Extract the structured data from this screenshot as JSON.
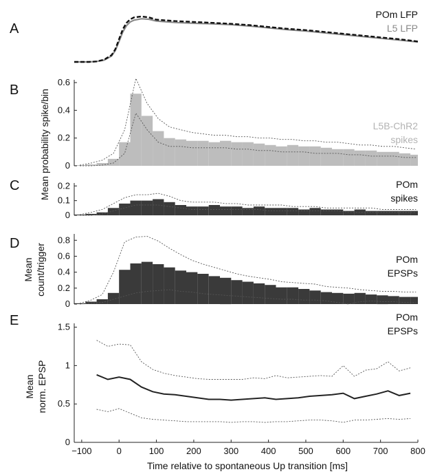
{
  "chart_data": [
    {
      "id": "A",
      "type": "line",
      "panel_label": "A",
      "legend": [
        "POm LFP",
        "L5 LFP"
      ],
      "colors": {
        "pom": "#111111",
        "l5": "#8a8a8a"
      },
      "xlim": [
        -120,
        800
      ],
      "series": [
        {
          "name": "POm LFP",
          "style": "dashed",
          "x": [
            -120,
            -80,
            -60,
            -40,
            -20,
            -10,
            0,
            10,
            20,
            30,
            40,
            60,
            80,
            100,
            150,
            200,
            250,
            300,
            350,
            400,
            450,
            500,
            550,
            600,
            650,
            700,
            750,
            800
          ],
          "y": [
            0.0,
            0.0,
            0.01,
            0.05,
            0.15,
            0.28,
            0.5,
            0.72,
            0.86,
            0.94,
            0.98,
            1.0,
            0.98,
            0.93,
            0.9,
            0.88,
            0.86,
            0.84,
            0.81,
            0.77,
            0.73,
            0.7,
            0.66,
            0.62,
            0.58,
            0.54,
            0.5,
            0.45
          ]
        },
        {
          "name": "L5 LFP",
          "style": "solid",
          "x": [
            -120,
            -80,
            -60,
            -40,
            -20,
            -10,
            0,
            10,
            20,
            30,
            40,
            60,
            80,
            100,
            150,
            200,
            250,
            300,
            350,
            400,
            450,
            500,
            550,
            600,
            650,
            700,
            750,
            800
          ],
          "y": [
            0.0,
            0.0,
            0.01,
            0.04,
            0.13,
            0.25,
            0.45,
            0.66,
            0.8,
            0.88,
            0.92,
            0.95,
            0.94,
            0.9,
            0.87,
            0.85,
            0.84,
            0.82,
            0.79,
            0.75,
            0.71,
            0.68,
            0.64,
            0.6,
            0.56,
            0.52,
            0.48,
            0.44
          ]
        }
      ]
    },
    {
      "id": "B",
      "type": "bar",
      "panel_label": "B",
      "legend": [
        "L5B-ChR2",
        "spikes"
      ],
      "legend_color": "#b3b3b3",
      "bar_color": "#bdbdbd",
      "ylim": [
        0,
        0.62
      ],
      "yticks": [
        "0",
        "0.2",
        "0.4",
        "0.6"
      ],
      "ytick_values": [
        0,
        0.2,
        0.4,
        0.6
      ],
      "bin_start": -120,
      "bin_width": 30,
      "values": [
        0.005,
        0.01,
        0.02,
        0.05,
        0.17,
        0.52,
        0.36,
        0.25,
        0.2,
        0.19,
        0.18,
        0.18,
        0.17,
        0.18,
        0.17,
        0.17,
        0.16,
        0.15,
        0.14,
        0.15,
        0.14,
        0.14,
        0.13,
        0.12,
        0.12,
        0.11,
        0.11,
        0.1,
        0.1,
        0.09,
        0.08
      ],
      "upper": [
        0.005,
        0.02,
        0.04,
        0.09,
        0.26,
        0.63,
        0.45,
        0.34,
        0.28,
        0.26,
        0.24,
        0.23,
        0.22,
        0.22,
        0.21,
        0.21,
        0.2,
        0.2,
        0.19,
        0.19,
        0.18,
        0.18,
        0.17,
        0.17,
        0.16,
        0.15,
        0.15,
        0.14,
        0.14,
        0.13,
        0.12
      ],
      "lower": [
        0.0,
        0.0,
        0.005,
        0.02,
        0.09,
        0.38,
        0.26,
        0.17,
        0.14,
        0.14,
        0.13,
        0.13,
        0.13,
        0.13,
        0.12,
        0.12,
        0.11,
        0.11,
        0.1,
        0.1,
        0.1,
        0.09,
        0.09,
        0.09,
        0.08,
        0.08,
        0.07,
        0.07,
        0.07,
        0.06,
        0.06
      ]
    },
    {
      "id": "C",
      "type": "bar",
      "panel_label": "C",
      "legend": [
        "POm",
        "spikes"
      ],
      "legend_color": "#111111",
      "bar_color": "#3a3a3a",
      "ylim": [
        0,
        0.22
      ],
      "yticks": [
        "0",
        "0.1",
        "0.2"
      ],
      "ytick_values": [
        0,
        0.1,
        0.2
      ],
      "bin_start": -120,
      "bin_width": 30,
      "values": [
        0.005,
        0.01,
        0.02,
        0.05,
        0.08,
        0.1,
        0.1,
        0.11,
        0.09,
        0.07,
        0.06,
        0.06,
        0.07,
        0.06,
        0.06,
        0.05,
        0.06,
        0.05,
        0.05,
        0.05,
        0.04,
        0.05,
        0.04,
        0.04,
        0.03,
        0.04,
        0.03,
        0.03,
        0.03,
        0.03,
        0.03
      ],
      "upper": [
        0.005,
        0.02,
        0.04,
        0.08,
        0.12,
        0.14,
        0.14,
        0.15,
        0.13,
        0.1,
        0.09,
        0.09,
        0.09,
        0.08,
        0.08,
        0.07,
        0.07,
        0.07,
        0.07,
        0.06,
        0.06,
        0.06,
        0.05,
        0.05,
        0.05,
        0.05,
        0.05,
        0.04,
        0.04,
        0.04,
        0.04
      ],
      "lower": [
        0.0,
        0.0,
        0.01,
        0.03,
        0.05,
        0.07,
        0.07,
        0.07,
        0.06,
        0.05,
        0.04,
        0.04,
        0.04,
        0.04,
        0.04,
        0.04,
        0.04,
        0.03,
        0.03,
        0.03,
        0.03,
        0.03,
        0.03,
        0.03,
        0.02,
        0.02,
        0.02,
        0.02,
        0.02,
        0.02,
        0.02
      ]
    },
    {
      "id": "D",
      "type": "bar",
      "panel_label": "D",
      "ylabel": [
        "Mean",
        "count/trigger"
      ],
      "legend": [
        "POm",
        "EPSPs"
      ],
      "legend_color": "#111111",
      "bar_color": "#3a3a3a",
      "ylim": [
        0,
        0.88
      ],
      "yticks": [
        "0",
        "0.2",
        "0.4",
        "0.6",
        "0.8"
      ],
      "ytick_values": [
        0,
        0.2,
        0.4,
        0.6,
        0.8
      ],
      "bin_start": -120,
      "bin_width": 30,
      "values": [
        0.01,
        0.03,
        0.06,
        0.14,
        0.43,
        0.51,
        0.53,
        0.5,
        0.46,
        0.42,
        0.4,
        0.38,
        0.35,
        0.33,
        0.3,
        0.28,
        0.26,
        0.24,
        0.21,
        0.21,
        0.19,
        0.17,
        0.15,
        0.14,
        0.13,
        0.14,
        0.12,
        0.11,
        0.1,
        0.09,
        0.09
      ],
      "upper": [
        0.01,
        0.05,
        0.12,
        0.4,
        0.78,
        0.84,
        0.85,
        0.79,
        0.7,
        0.62,
        0.55,
        0.5,
        0.46,
        0.42,
        0.38,
        0.35,
        0.33,
        0.31,
        0.28,
        0.27,
        0.26,
        0.25,
        0.22,
        0.21,
        0.2,
        0.18,
        0.17,
        0.16,
        0.16,
        0.15,
        0.15
      ],
      "lower": [
        0.0,
        0.01,
        0.02,
        0.06,
        0.1,
        0.14,
        0.16,
        0.17,
        0.18,
        0.16,
        0.15,
        0.13,
        0.12,
        0.11,
        0.1,
        0.09,
        0.08,
        0.07,
        0.06,
        0.06,
        0.05,
        0.05,
        0.04,
        0.02,
        0.0,
        0.03,
        0.04,
        0.03,
        0.03,
        0.02,
        0.02
      ]
    },
    {
      "id": "E",
      "type": "line",
      "panel_label": "E",
      "ylabel": [
        "Mean",
        "norm. EPSP"
      ],
      "legend": [
        "POm",
        "EPSPs"
      ],
      "legend_color": "#111111",
      "ylim": [
        0,
        1.55
      ],
      "yticks": [
        "0",
        "0.5",
        "1",
        "1.5"
      ],
      "ytick_values": [
        0,
        0.5,
        1,
        1.5
      ],
      "x": [
        -60,
        -30,
        0,
        30,
        60,
        90,
        120,
        150,
        180,
        210,
        240,
        270,
        300,
        330,
        360,
        390,
        420,
        450,
        480,
        510,
        540,
        570,
        600,
        630,
        660,
        690,
        720,
        750,
        780
      ],
      "mean": [
        0.88,
        0.82,
        0.85,
        0.82,
        0.72,
        0.66,
        0.63,
        0.62,
        0.6,
        0.58,
        0.56,
        0.56,
        0.55,
        0.56,
        0.57,
        0.58,
        0.56,
        0.57,
        0.58,
        0.6,
        0.61,
        0.62,
        0.64,
        0.57,
        0.6,
        0.63,
        0.67,
        0.61,
        0.64
      ],
      "upper": [
        1.33,
        1.25,
        1.28,
        1.27,
        1.05,
        0.95,
        0.9,
        0.87,
        0.85,
        0.83,
        0.82,
        0.82,
        0.82,
        0.82,
        0.84,
        0.83,
        0.87,
        0.84,
        0.85,
        0.86,
        0.87,
        0.86,
        1.0,
        0.86,
        0.94,
        0.96,
        1.05,
        0.93,
        0.97
      ],
      "lower": [
        0.43,
        0.4,
        0.44,
        0.38,
        0.32,
        0.3,
        0.29,
        0.28,
        0.27,
        0.27,
        0.27,
        0.27,
        0.26,
        0.27,
        0.27,
        0.26,
        0.27,
        0.27,
        0.28,
        0.29,
        0.29,
        0.28,
        0.26,
        0.29,
        0.29,
        0.3,
        0.31,
        0.3,
        0.31
      ]
    }
  ],
  "shared_ylabel": "Mean probability spike/bin",
  "xaxis": {
    "label": "Time relative to spontaneous Up transition [ms]",
    "xlim": [
      -120,
      800
    ],
    "ticks": [
      "−100",
      "0",
      "100",
      "200",
      "300",
      "400",
      "500",
      "600",
      "700",
      "800"
    ],
    "tick_values": [
      -100,
      0,
      100,
      200,
      300,
      400,
      500,
      600,
      700,
      800
    ]
  }
}
